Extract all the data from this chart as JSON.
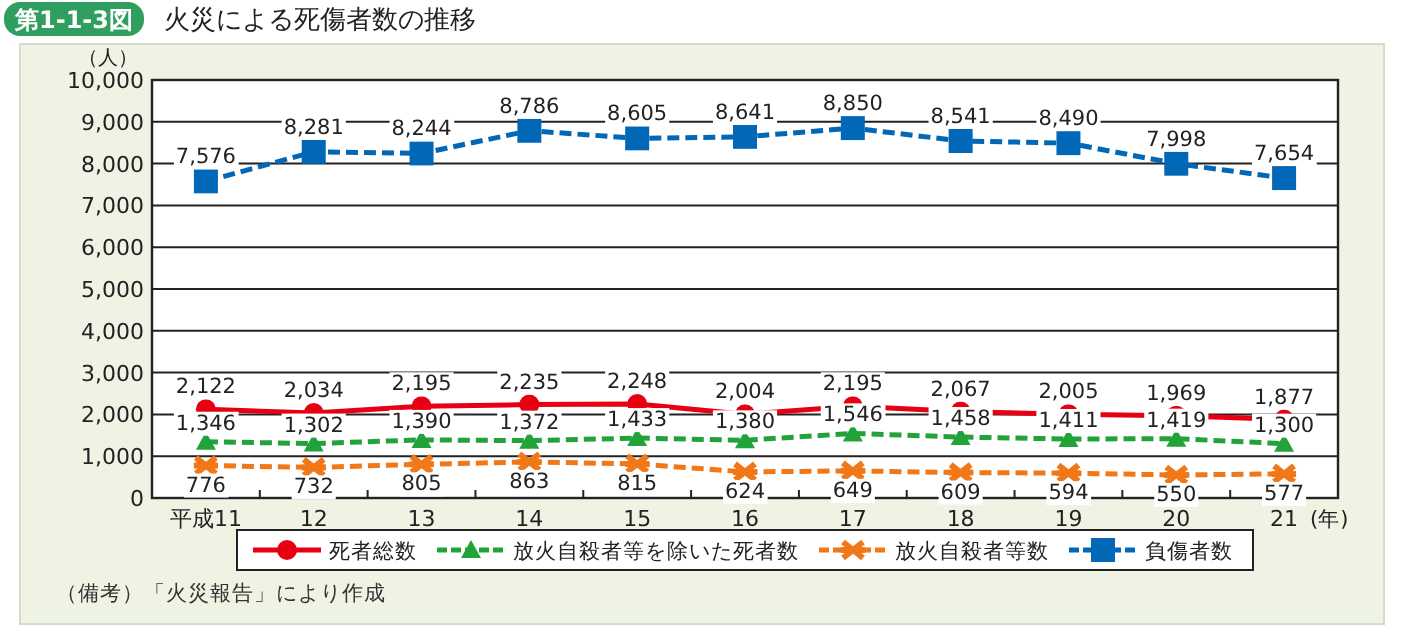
{
  "chart_data": {
    "type": "line",
    "title": "火災による死傷者数の推移",
    "annotations": [
      "第1-1-3図",
      "（備考）「火災報告」により作成"
    ],
    "ylabel": "（人）",
    "xlabel": "(年)",
    "categories": [
      "平成11",
      "12",
      "13",
      "14",
      "15",
      "16",
      "17",
      "18",
      "19",
      "20",
      "21"
    ],
    "ylim": [
      0,
      10000
    ],
    "yticks": [
      {
        "value": 0,
        "label": "0"
      },
      {
        "value": 1000,
        "label": "1,000"
      },
      {
        "value": 2000,
        "label": "2,000"
      },
      {
        "value": 3000,
        "label": "3,000"
      },
      {
        "value": 4000,
        "label": "4,000"
      },
      {
        "value": 5000,
        "label": "5,000"
      },
      {
        "value": 6000,
        "label": "6,000"
      },
      {
        "value": 7000,
        "label": "7,000"
      },
      {
        "value": 8000,
        "label": "8,000"
      },
      {
        "value": 9000,
        "label": "9,000"
      },
      {
        "value": 10000,
        "label": "10,000"
      }
    ],
    "grid": "y",
    "legend": "bottom",
    "series": [
      {
        "name": "死者総数",
        "color": "#e60012",
        "marker": "circle",
        "line_style": "solid",
        "values": [
          2122,
          2034,
          2195,
          2235,
          2248,
          2004,
          2195,
          2067,
          2005,
          1969,
          1877
        ],
        "value_labels": [
          "2,122",
          "2,034",
          "2,195",
          "2,235",
          "2,248",
          "2,004",
          "2,195",
          "2,067",
          "2,005",
          "1,969",
          "1,877"
        ]
      },
      {
        "name": "放火自殺者等を除いた死者数",
        "color": "#22a33a",
        "marker": "triangle",
        "line_style": "dashed",
        "values": [
          1346,
          1302,
          1390,
          1372,
          1433,
          1380,
          1546,
          1458,
          1411,
          1419,
          1300
        ],
        "value_labels": [
          "1,346",
          "1,302",
          "1,390",
          "1,372",
          "1,433",
          "1,380",
          "1,546",
          "1,458",
          "1,411",
          "1,419",
          "1,300"
        ]
      },
      {
        "name": "放火自殺者等数",
        "color": "#f07818",
        "marker": "cross",
        "line_style": "dashed",
        "values": [
          776,
          732,
          805,
          863,
          815,
          624,
          649,
          609,
          594,
          550,
          577
        ],
        "value_labels": [
          "776",
          "732",
          "805",
          "863",
          "815",
          "624",
          "649",
          "609",
          "594",
          "550",
          "577"
        ]
      },
      {
        "name": "負傷者数",
        "color": "#0068b7",
        "marker": "square",
        "line_style": "dashed",
        "values": [
          7576,
          8281,
          8244,
          8786,
          8605,
          8641,
          8850,
          8541,
          8490,
          7998,
          7654
        ],
        "value_labels": [
          "7,576",
          "8,281",
          "8,244",
          "8,786",
          "8,605",
          "8,641",
          "8,850",
          "8,541",
          "8,490",
          "7,998",
          "7,654"
        ]
      }
    ]
  }
}
